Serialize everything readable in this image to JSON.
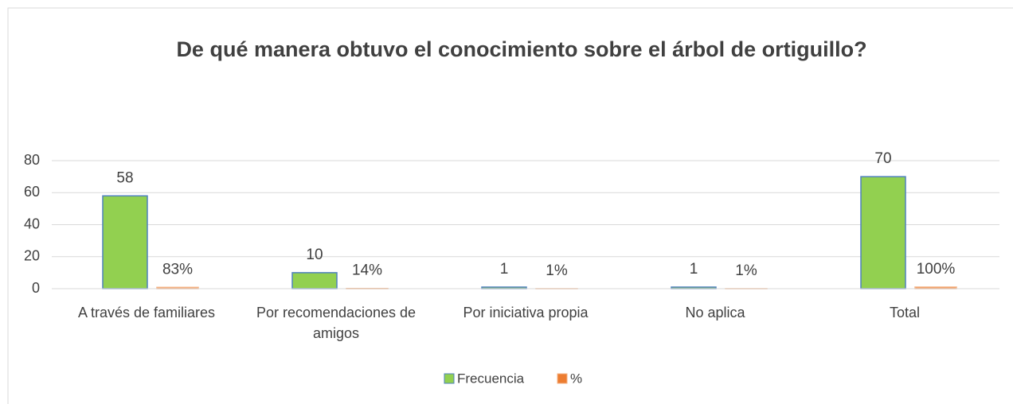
{
  "chart_data": {
    "type": "bar",
    "title": "De qué manera obtuvo el conocimiento sobre el árbol de ortiguillo?",
    "categories": [
      "A través de familiares",
      "Por recomendaciones de amigos",
      "Por iniciativa propia",
      "No aplica",
      "Total"
    ],
    "series": [
      {
        "name": "Frecuencia",
        "color": "#92d050",
        "edgecolor": "#4f81bd",
        "values": [
          58,
          10,
          1,
          1,
          70
        ]
      },
      {
        "name": "%",
        "color": "#ed7d31",
        "edgecolor": "#f4b183",
        "values": [
          0.83,
          0.14,
          0.01,
          0.01,
          1
        ],
        "value_labels": [
          "83%",
          "14%",
          "1%",
          "1%",
          "100%"
        ]
      }
    ],
    "ylim": [
      0,
      80
    ],
    "yticks": [
      0,
      20,
      40,
      60,
      80
    ],
    "grid": true,
    "legend": "bottom"
  }
}
